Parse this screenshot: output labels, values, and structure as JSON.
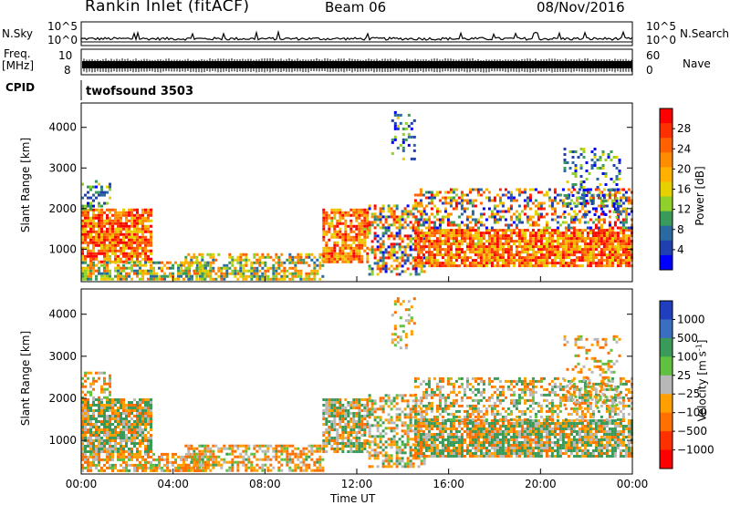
{
  "header": {
    "station": "Rankin Inlet (fitACF)",
    "beam": "Beam 06",
    "date": "08/Nov/2016"
  },
  "top_strips": {
    "nsky_label": "N.Sky",
    "nsky_ticks": [
      "10^5",
      "10^0"
    ],
    "nsearch_label": "N.Search",
    "nsearch_ticks": [
      "10^5",
      "10^0"
    ],
    "freq_label": "Freq.",
    "freq_unit": "[MHz]",
    "freq_ticks": [
      "10",
      "8"
    ],
    "nave_label": "Nave",
    "nave_ticks": [
      "60",
      "0"
    ],
    "cpid_label": "CPID",
    "cpid_value": "twofsound 3503"
  },
  "chart_data": [
    {
      "type": "heatmap",
      "name": "power-panel",
      "ylabel": "Slant Range [km]",
      "xlabel": "",
      "yticks": [
        "1000",
        "2000",
        "3000",
        "4000"
      ],
      "ylim": [
        200,
        4600
      ],
      "xlim": [
        0,
        24
      ],
      "colorbar": {
        "label": "Power [dB]",
        "ticks": [
          "28",
          "24",
          "20",
          "16",
          "12",
          "8",
          "4"
        ],
        "colors": [
          "#ff0000",
          "#ff3000",
          "#ff6000",
          "#ff8c00",
          "#ffb000",
          "#e6d000",
          "#8fd02a",
          "#3a9a5a",
          "#2a6aa0",
          "#2040b0",
          "#0000ff"
        ]
      }
    },
    {
      "type": "heatmap",
      "name": "velocity-panel",
      "ylabel": "Slant Range [km]",
      "xlabel": "Time UT",
      "yticks": [
        "1000",
        "2000",
        "3000",
        "4000"
      ],
      "ylim": [
        200,
        4600
      ],
      "xlim": [
        0,
        24
      ],
      "xticks": [
        "00:00",
        "04:00",
        "08:00",
        "12:00",
        "16:00",
        "20:00",
        "00:00"
      ],
      "colorbar": {
        "label": "Velocity",
        "unit": "[m s",
        "unit_exp": "-1",
        "unit_close": "]",
        "ticks": [
          "1000",
          "500",
          "100",
          "25",
          "−25",
          "−100",
          "−500",
          "−1000"
        ],
        "colors": [
          "#1f3fbf",
          "#3a6fbf",
          "#3a9a5a",
          "#60c040",
          "#b8b8b8",
          "#ffa000",
          "#ff7000",
          "#ff3000",
          "#ff0000"
        ]
      }
    }
  ]
}
